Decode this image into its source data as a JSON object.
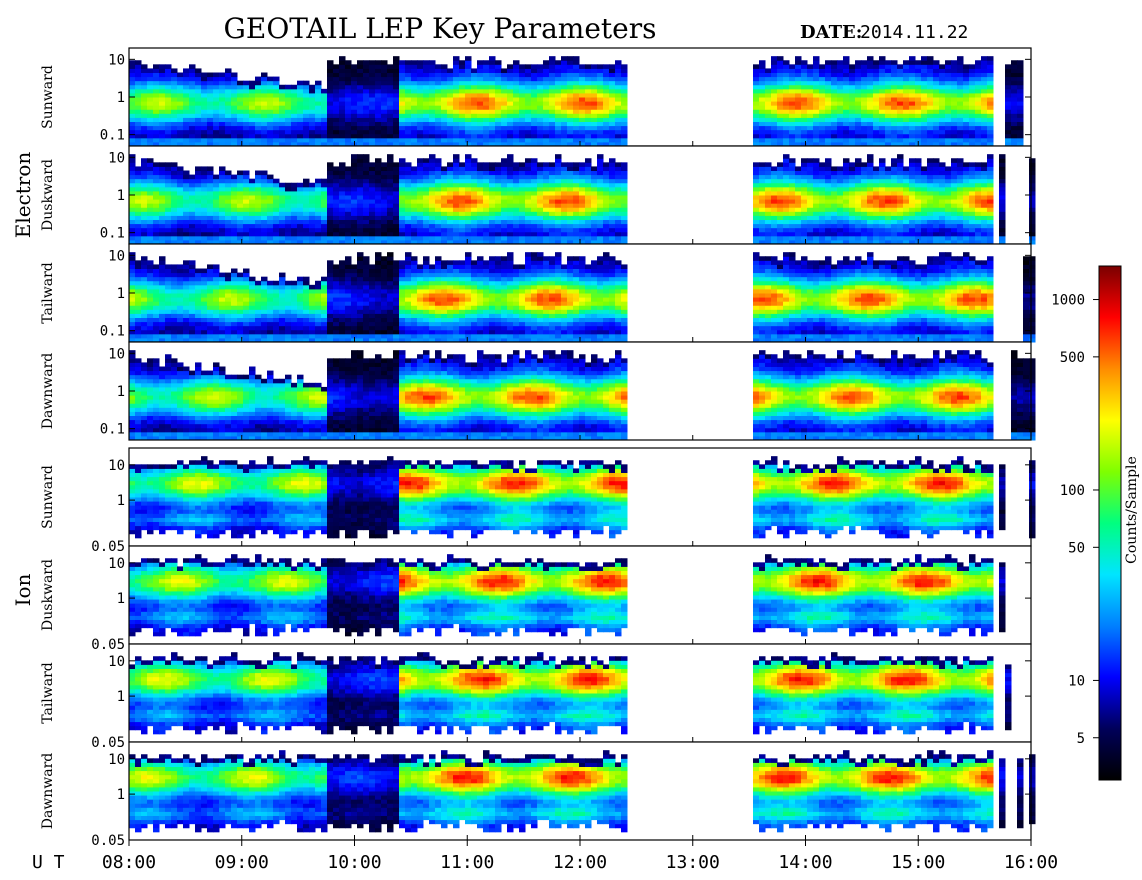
{
  "title": "GEOTAIL LEP Key Parameters",
  "date_label": "DATE:",
  "date_value": "2014.11.22",
  "x_axis_label": "U T",
  "time_ticks": [
    "08:00",
    "09:00",
    "10:00",
    "11:00",
    "12:00",
    "13:00",
    "14:00",
    "15:00",
    "16:00"
  ],
  "species_labels": [
    "Electron",
    "Ion"
  ],
  "colorbar": {
    "label": "Counts/Sample",
    "ticks": [
      "1000",
      "500",
      "100",
      "50",
      "10",
      "5"
    ],
    "tick_values": [
      1000,
      500,
      100,
      50,
      10,
      5
    ],
    "range": [
      3,
      1500
    ],
    "scale": "log",
    "colormap": [
      "#7a0000",
      "#ff0000",
      "#ff8c00",
      "#ffff00",
      "#7fff00",
      "#00ff7f",
      "#00e5ff",
      "#0080ff",
      "#0000ff",
      "#00005a",
      "#000000"
    ]
  },
  "chart_data": {
    "type": "heatmap",
    "x_range": [
      "08:00",
      "16:00"
    ],
    "panels": [
      {
        "species": "Electron",
        "direction": "Sunward",
        "y_scale": "log",
        "y_range": [
          0.05,
          20
        ],
        "y_ticks": [
          "10",
          "1",
          "0.1"
        ],
        "y_tick_values": [
          10,
          1,
          0.1
        ]
      },
      {
        "species": "Electron",
        "direction": "Duskward",
        "y_scale": "log",
        "y_range": [
          0.05,
          20
        ],
        "y_ticks": [
          "10",
          "1",
          "0.1"
        ],
        "y_tick_values": [
          10,
          1,
          0.1
        ]
      },
      {
        "species": "Electron",
        "direction": "Tailward",
        "y_scale": "log",
        "y_range": [
          0.05,
          20
        ],
        "y_ticks": [
          "10",
          "1",
          "0.1"
        ],
        "y_tick_values": [
          10,
          1,
          0.1
        ]
      },
      {
        "species": "Electron",
        "direction": "Dawnward",
        "y_scale": "log",
        "y_range": [
          0.05,
          20
        ],
        "y_ticks": [
          "10",
          "1",
          "0.1"
        ],
        "y_tick_values": [
          10,
          1,
          0.1
        ]
      },
      {
        "species": "Ion",
        "direction": "Sunward",
        "y_scale": "log",
        "y_range": [
          0.05,
          30
        ],
        "y_ticks": [
          "10",
          "1",
          "0.05"
        ],
        "y_tick_values": [
          10,
          1,
          0.05
        ]
      },
      {
        "species": "Ion",
        "direction": "Duskward",
        "y_scale": "log",
        "y_range": [
          0.05,
          30
        ],
        "y_ticks": [
          "10",
          "1",
          "0.05"
        ],
        "y_tick_values": [
          10,
          1,
          0.05
        ]
      },
      {
        "species": "Ion",
        "direction": "Tailward",
        "y_scale": "log",
        "y_range": [
          0.05,
          30
        ],
        "y_ticks": [
          "10",
          "1",
          "0.05"
        ],
        "y_tick_values": [
          10,
          1,
          0.05
        ]
      },
      {
        "species": "Ion",
        "direction": "Dawnward",
        "y_scale": "log",
        "y_range": [
          0.05,
          30
        ],
        "y_ticks": [
          "10",
          "1",
          "0.05"
        ],
        "y_tick_values": [
          10,
          1,
          0.05
        ]
      }
    ],
    "data_coverage": [
      {
        "start": "08:00",
        "end": "09:43",
        "intensity": "moderate"
      },
      {
        "start": "09:43",
        "end": "10:23",
        "intensity": "low"
      },
      {
        "start": "10:23",
        "end": "12:25",
        "intensity": "high"
      },
      {
        "start": "12:25",
        "end": "13:30",
        "intensity": "none"
      },
      {
        "start": "13:30",
        "end": "15:37",
        "intensity": "high"
      },
      {
        "start": "15:37",
        "end": "16:00",
        "intensity": "sparse"
      }
    ]
  }
}
